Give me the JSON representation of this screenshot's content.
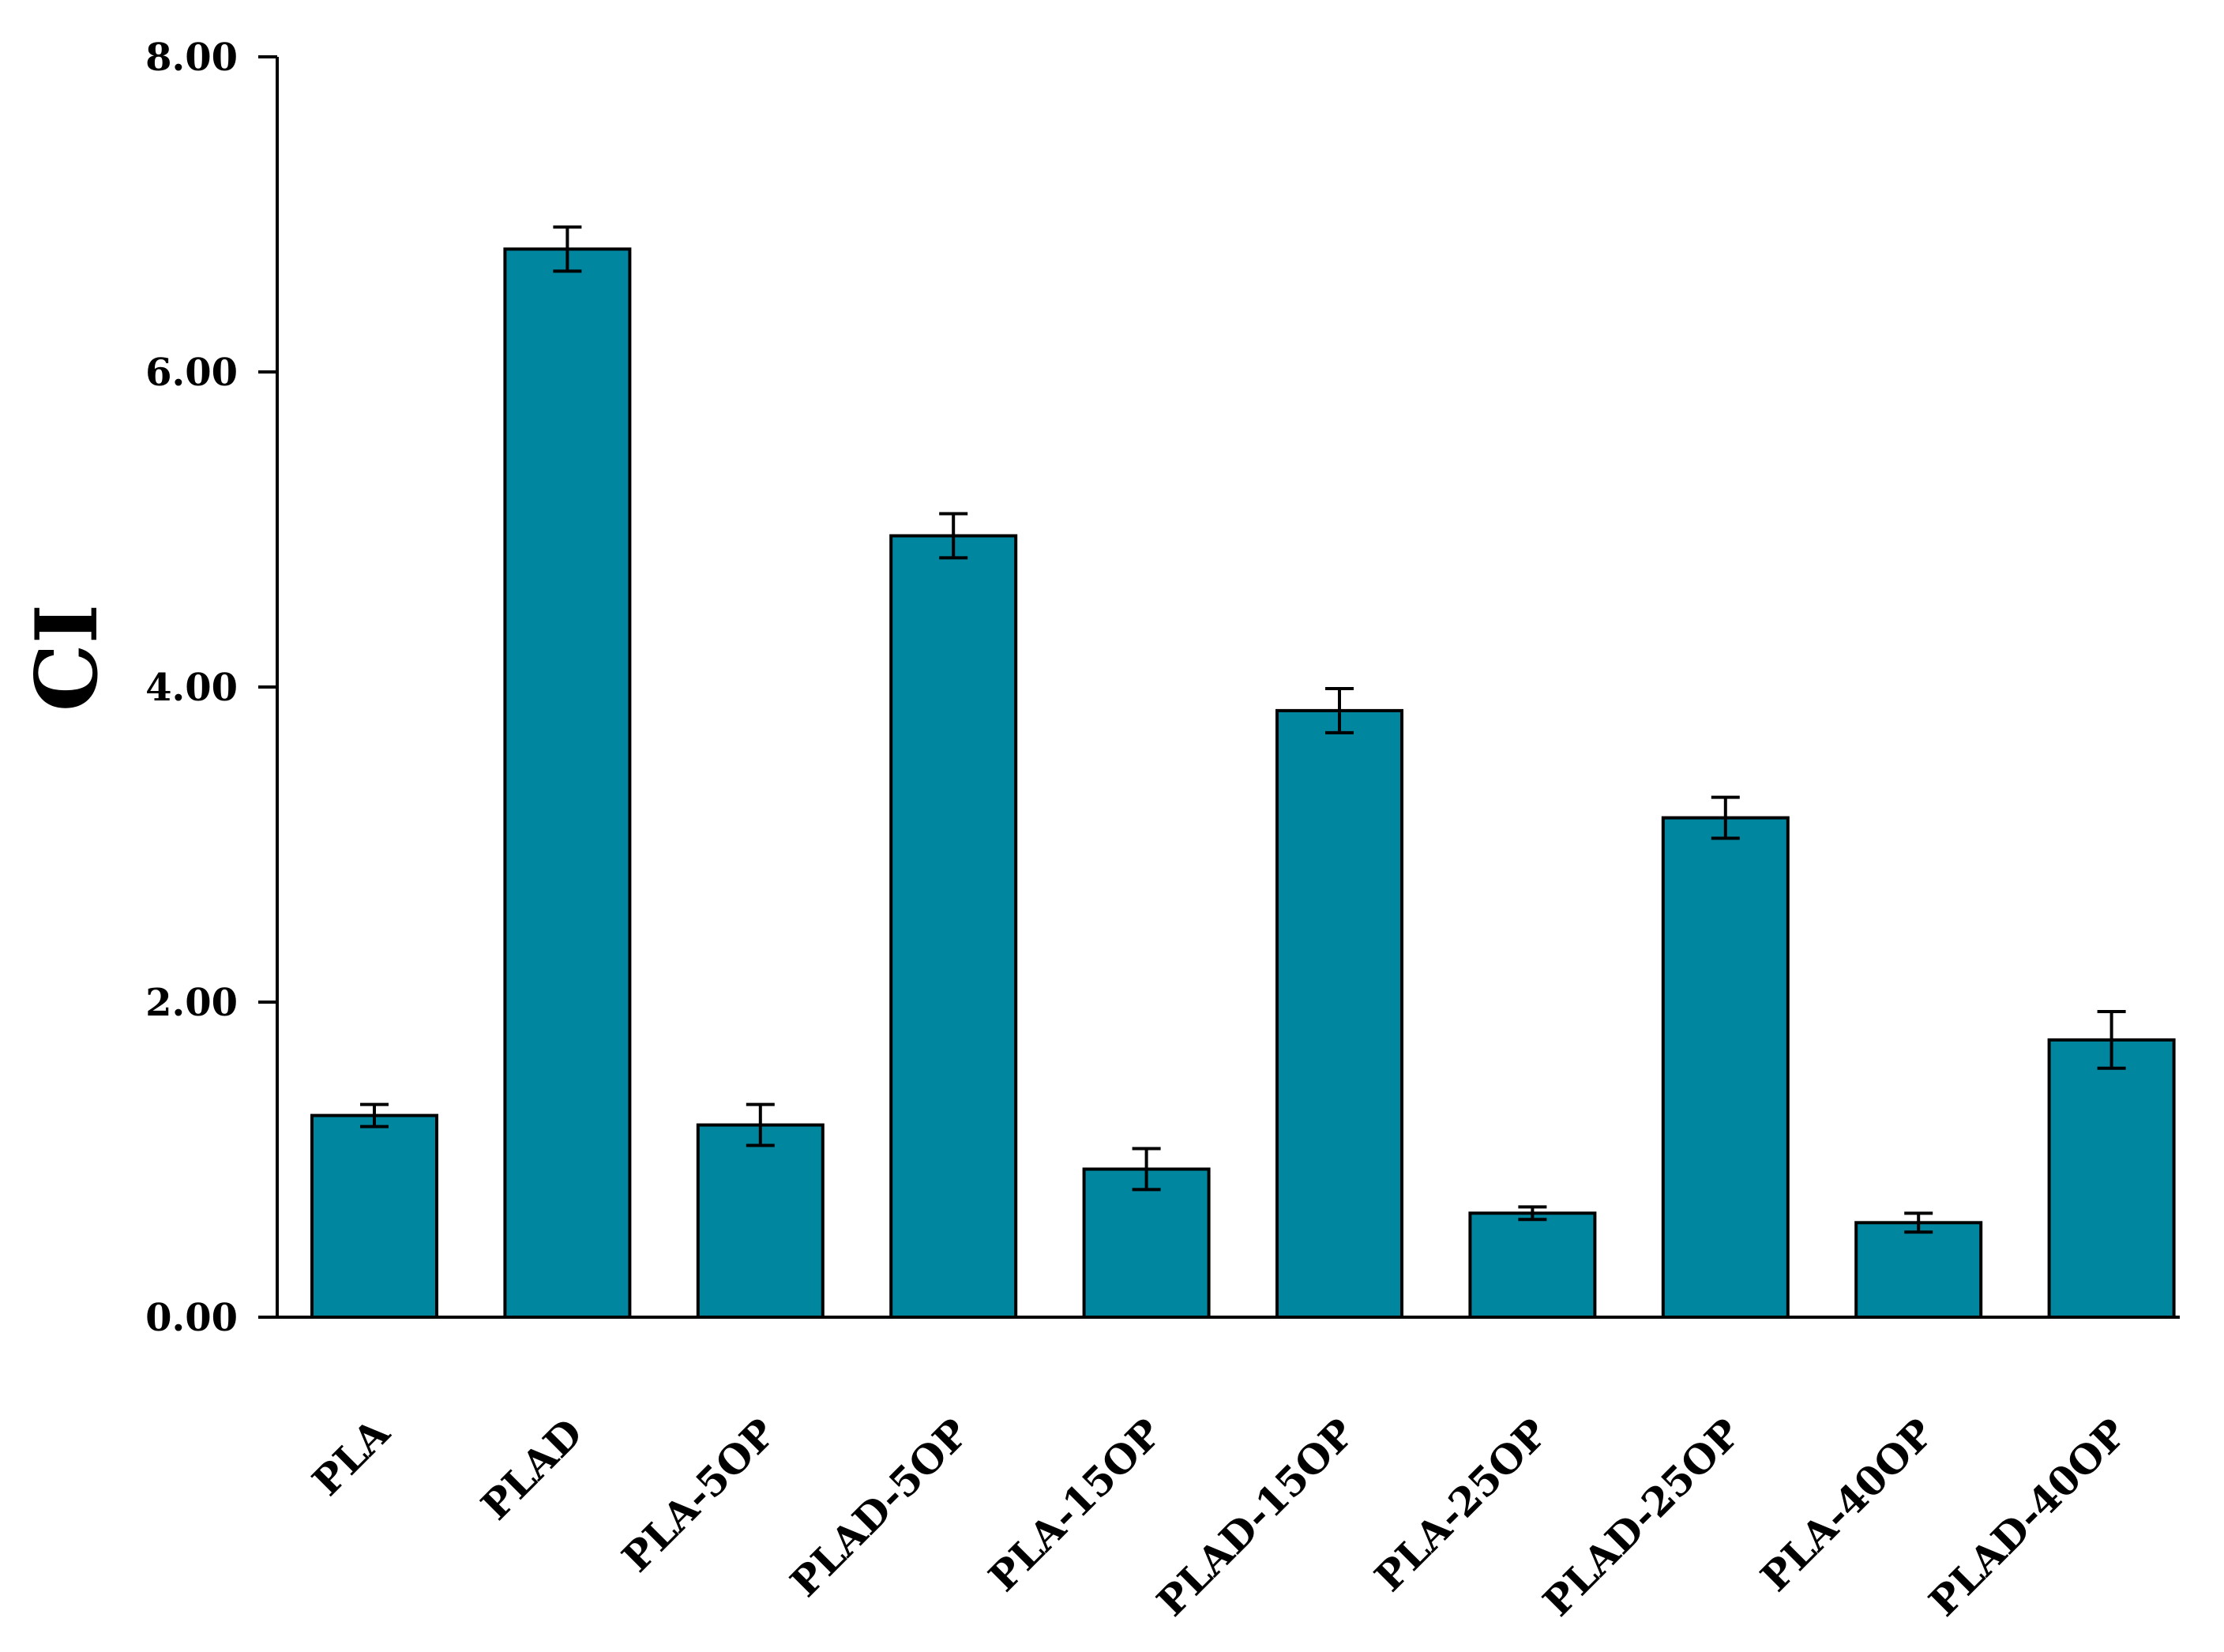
{
  "chart_data": {
    "type": "bar",
    "title": "",
    "xlabel": "",
    "ylabel": "CI",
    "ylim": [
      0,
      8
    ],
    "yticks": [
      0,
      2,
      4,
      6,
      8
    ],
    "ytick_labels": [
      "0.00",
      "2.00",
      "4.00",
      "6.00",
      "8.00"
    ],
    "categories": [
      "PLA",
      "PLAD",
      "PLA-5OP",
      "PLAD-5OP",
      "PLA-15OP",
      "PLAD-15OP",
      "PLA-25OP",
      "PLAD-25OP",
      "PLA-40OP",
      "PLAD-40OP"
    ],
    "values": [
      1.28,
      6.78,
      1.22,
      4.96,
      0.94,
      3.85,
      0.66,
      3.17,
      0.6,
      1.76
    ],
    "errors": [
      0.07,
      0.14,
      0.13,
      0.14,
      0.13,
      0.14,
      0.04,
      0.13,
      0.06,
      0.18
    ],
    "bar_color": "#00869f",
    "bar_edge_color": "#000000",
    "legend": "none",
    "grid": false
  }
}
